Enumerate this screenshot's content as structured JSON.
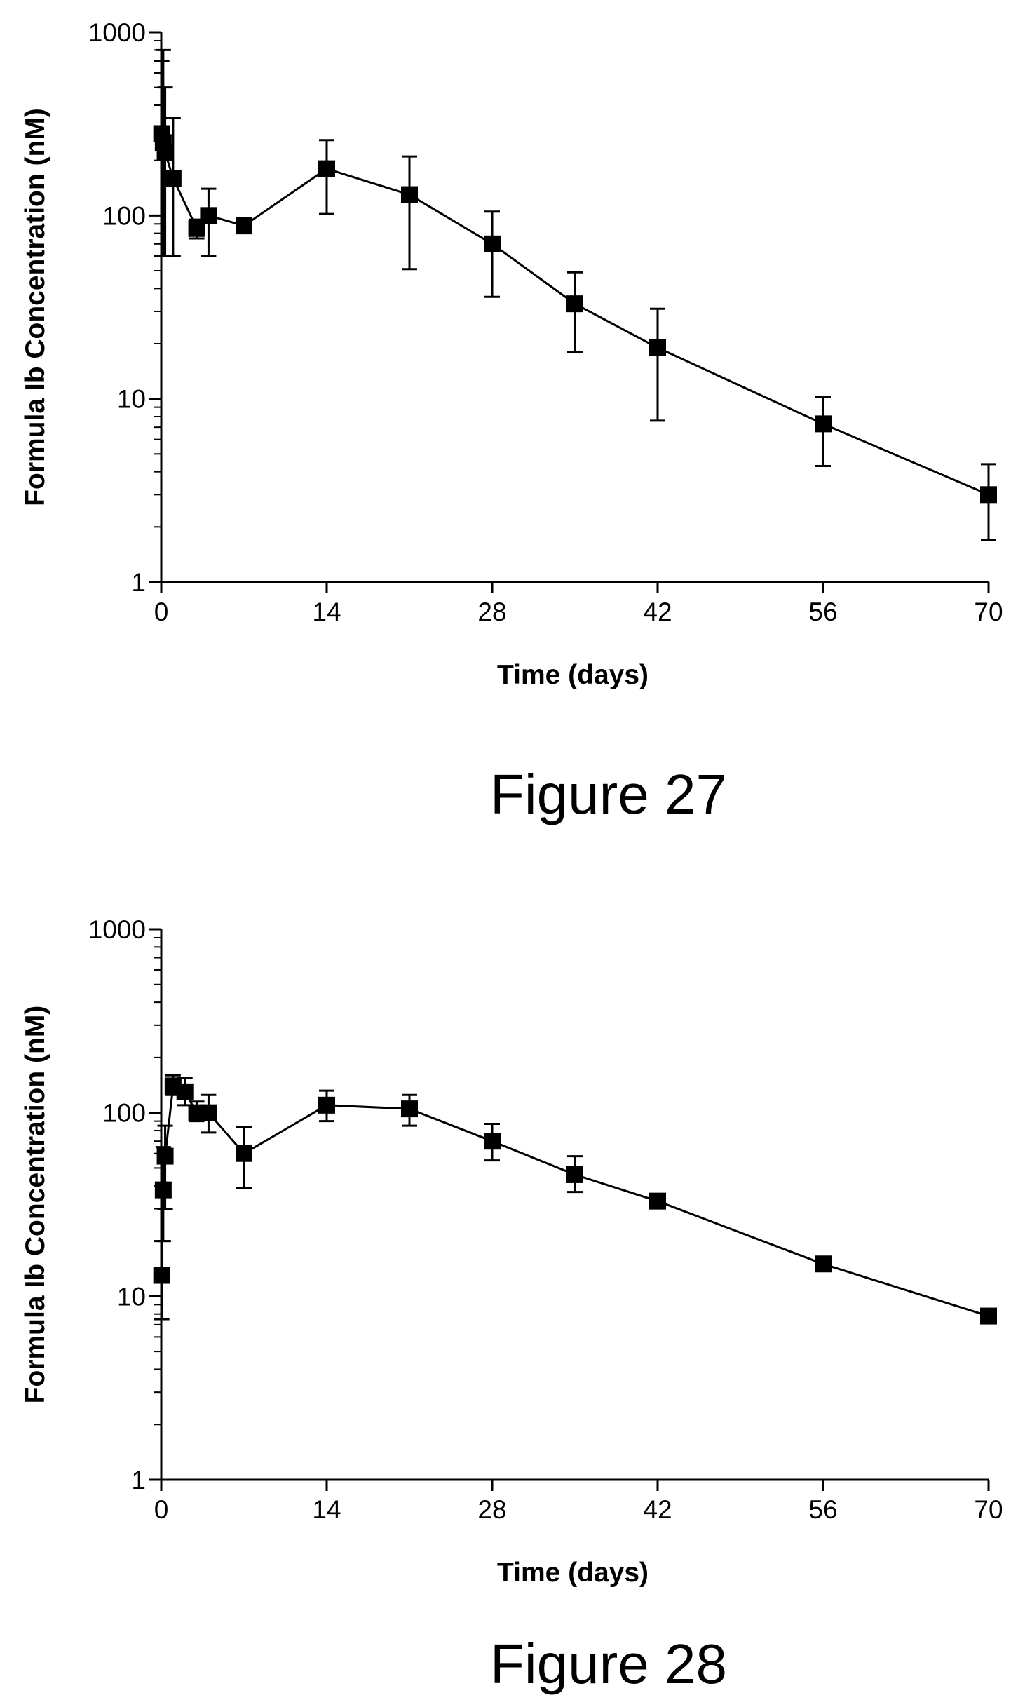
{
  "chart_data": [
    {
      "type": "line",
      "caption": "Figure 27",
      "xlabel": "Time (days)",
      "ylabel": "Formula Ib Concentration (nM)",
      "y_scale": "log",
      "xlim": [
        0,
        70
      ],
      "ylim": [
        1,
        1000
      ],
      "x_ticks": [
        0,
        14,
        28,
        42,
        56,
        70
      ],
      "y_ticks": [
        1,
        10,
        100,
        1000
      ],
      "grid": false,
      "marker": "square",
      "color": "#000000",
      "series": [
        {
          "x": [
            0.04,
            0.17,
            0.33,
            1,
            3,
            4,
            7,
            14,
            21,
            28,
            35,
            42,
            56,
            70
          ],
          "y": [
            280,
            250,
            220,
            160,
            85,
            100,
            88,
            180,
            130,
            70,
            33,
            19,
            7.3,
            3
          ],
          "err_low": [
            60,
            60,
            60,
            60,
            75,
            60,
            80,
            102,
            51,
            36,
            18,
            7.6,
            4.3,
            1.7
          ],
          "err_high": [
            700,
            800,
            500,
            340,
            95,
            140,
            95,
            258,
            210,
            105,
            49,
            31,
            10.2,
            4.4
          ]
        }
      ]
    },
    {
      "type": "line",
      "caption": "Figure 28",
      "xlabel": "Time (days)",
      "ylabel": "Formula Ib Concentration (nM)",
      "y_scale": "log",
      "xlim": [
        0,
        70
      ],
      "ylim": [
        1,
        1000
      ],
      "x_ticks": [
        0,
        14,
        28,
        42,
        56,
        70
      ],
      "y_ticks": [
        1,
        10,
        100,
        1000
      ],
      "grid": false,
      "marker": "square",
      "color": "#000000",
      "series": [
        {
          "x": [
            0.04,
            0.17,
            0.33,
            1,
            2,
            3,
            4,
            7,
            14,
            21,
            28,
            35,
            42,
            56,
            70
          ],
          "y": [
            13,
            38,
            58,
            140,
            130,
            100,
            100,
            60,
            110,
            105,
            70,
            46,
            33,
            15,
            7.8
          ],
          "err_low": [
            7.5,
            20,
            30,
            125,
            110,
            90,
            78,
            39,
            90,
            85,
            55,
            37,
            31,
            14,
            7.2
          ],
          "err_high": [
            20,
            65,
            85,
            160,
            155,
            115,
            125,
            84,
            132,
            125,
            87,
            58,
            35,
            16,
            8.5
          ]
        }
      ]
    }
  ]
}
